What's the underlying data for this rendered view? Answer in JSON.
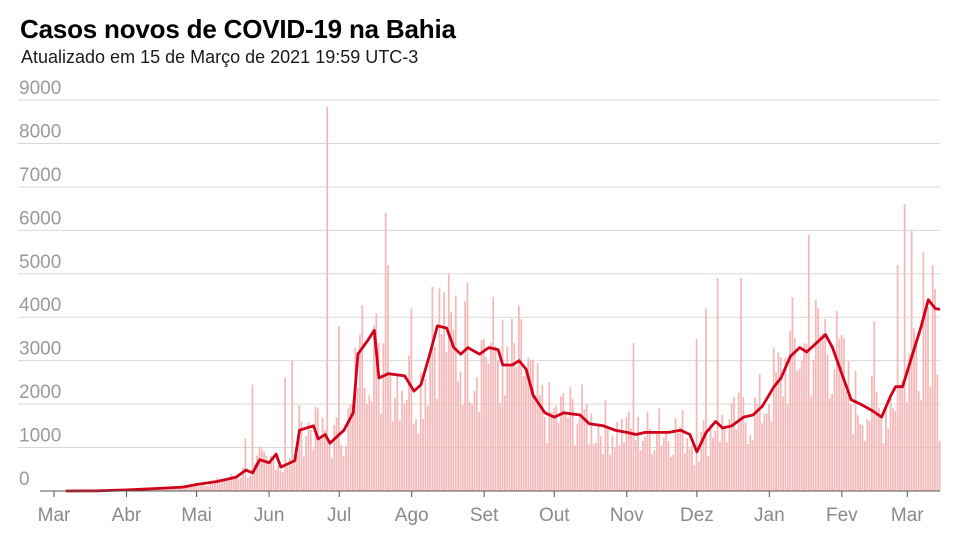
{
  "header": {
    "title": "Casos novos de COVID-19 na Bahia",
    "subtitle": "Atualizado em 15 de Março de 2021 19:59 UTC-3"
  },
  "colors": {
    "bar": "#f4b8b8",
    "line": "#d0021b",
    "grid": "#d9d9d9",
    "axis": "#555555"
  },
  "chart_data": {
    "type": "bar",
    "title": "Casos novos de COVID-19 na Bahia",
    "subtitle": "Atualizado em 15 de Março de 2021 19:59 UTC-3",
    "xlabel": "",
    "ylabel": "",
    "ylim": [
      0,
      9000
    ],
    "y_ticks": [
      0,
      1000,
      2000,
      3000,
      4000,
      5000,
      6000,
      7000,
      8000,
      9000
    ],
    "x_ticks": [
      "Mar",
      "Abr",
      "Mai",
      "Jun",
      "Jul",
      "Ago",
      "Set",
      "Out",
      "Nov",
      "Dez",
      "Jan",
      "Fev",
      "Mar"
    ],
    "x_range": [
      "2020-03-01",
      "2021-03-15"
    ],
    "grid": true,
    "legend": "none",
    "series": [
      {
        "type": "bar",
        "values_note": "daily new cases",
        "points": [
          [
            "2020-03-06",
            1
          ],
          [
            "2020-03-20",
            10
          ],
          [
            "2020-04-01",
            30
          ],
          [
            "2020-04-15",
            60
          ],
          [
            "2020-05-01",
            130
          ],
          [
            "2020-05-15",
            250
          ],
          [
            "2020-05-22",
            1200
          ],
          [
            "2020-05-25",
            2450
          ],
          [
            "2020-06-01",
            700
          ],
          [
            "2020-06-08",
            2600
          ],
          [
            "2020-06-11",
            3000
          ],
          [
            "2020-06-15",
            1600
          ],
          [
            "2020-06-22",
            1900
          ],
          [
            "2020-06-26",
            8850
          ],
          [
            "2020-07-01",
            3800
          ],
          [
            "2020-07-10",
            3600
          ],
          [
            "2020-07-20",
            3400
          ],
          [
            "2020-07-21",
            6400
          ],
          [
            "2020-07-22",
            5200
          ],
          [
            "2020-08-01",
            4200
          ],
          [
            "2020-08-10",
            4700
          ],
          [
            "2020-08-20",
            4500
          ],
          [
            "2020-08-25",
            4800
          ],
          [
            "2020-09-01",
            3500
          ],
          [
            "2020-09-10",
            2200
          ],
          [
            "2020-10-01",
            1900
          ],
          [
            "2020-10-15",
            2000
          ],
          [
            "2020-11-01",
            1700
          ],
          [
            "2020-11-04",
            3400
          ],
          [
            "2020-11-15",
            1900
          ],
          [
            "2020-12-01",
            3500
          ],
          [
            "2020-12-05",
            4200
          ],
          [
            "2020-12-10",
            4900
          ],
          [
            "2020-12-20",
            4900
          ],
          [
            "2021-01-01",
            2000
          ],
          [
            "2021-01-15",
            3000
          ],
          [
            "2021-01-18",
            5900
          ],
          [
            "2021-02-01",
            3600
          ],
          [
            "2021-02-15",
            3900
          ],
          [
            "2021-02-25",
            5200
          ],
          [
            "2021-02-28",
            6600
          ],
          [
            "2021-03-03",
            6000
          ],
          [
            "2021-03-08",
            5500
          ],
          [
            "2021-03-12",
            5200
          ],
          [
            "2021-03-15",
            1150
          ]
        ]
      },
      {
        "type": "line",
        "values_note": "moving average",
        "points": [
          [
            "2020-03-06",
            0
          ],
          [
            "2020-03-20",
            5
          ],
          [
            "2020-04-01",
            25
          ],
          [
            "2020-04-15",
            60
          ],
          [
            "2020-04-25",
            90
          ],
          [
            "2020-05-01",
            150
          ],
          [
            "2020-05-10",
            220
          ],
          [
            "2020-05-18",
            320
          ],
          [
            "2020-05-22",
            480
          ],
          [
            "2020-05-25",
            420
          ],
          [
            "2020-05-28",
            720
          ],
          [
            "2020-06-01",
            650
          ],
          [
            "2020-06-04",
            850
          ],
          [
            "2020-06-06",
            550
          ],
          [
            "2020-06-12",
            700
          ],
          [
            "2020-06-14",
            1400
          ],
          [
            "2020-06-20",
            1500
          ],
          [
            "2020-06-22",
            1200
          ],
          [
            "2020-06-25",
            1300
          ],
          [
            "2020-06-27",
            1100
          ],
          [
            "2020-07-03",
            1400
          ],
          [
            "2020-07-07",
            1800
          ],
          [
            "2020-07-09",
            3150
          ],
          [
            "2020-07-13",
            3450
          ],
          [
            "2020-07-16",
            3700
          ],
          [
            "2020-07-18",
            2600
          ],
          [
            "2020-07-22",
            2700
          ],
          [
            "2020-07-29",
            2650
          ],
          [
            "2020-08-02",
            2300
          ],
          [
            "2020-08-05",
            2450
          ],
          [
            "2020-08-09",
            3200
          ],
          [
            "2020-08-12",
            3800
          ],
          [
            "2020-08-16",
            3750
          ],
          [
            "2020-08-19",
            3300
          ],
          [
            "2020-08-22",
            3150
          ],
          [
            "2020-08-25",
            3300
          ],
          [
            "2020-08-30",
            3150
          ],
          [
            "2020-09-03",
            3300
          ],
          [
            "2020-09-07",
            3250
          ],
          [
            "2020-09-09",
            2900
          ],
          [
            "2020-09-13",
            2900
          ],
          [
            "2020-09-16",
            3000
          ],
          [
            "2020-09-19",
            2800
          ],
          [
            "2020-09-22",
            2200
          ],
          [
            "2020-09-27",
            1800
          ],
          [
            "2020-10-01",
            1700
          ],
          [
            "2020-10-05",
            1800
          ],
          [
            "2020-10-12",
            1750
          ],
          [
            "2020-10-16",
            1550
          ],
          [
            "2020-10-22",
            1500
          ],
          [
            "2020-10-27",
            1400
          ],
          [
            "2020-11-01",
            1350
          ],
          [
            "2020-11-05",
            1300
          ],
          [
            "2020-11-09",
            1350
          ],
          [
            "2020-11-14",
            1350
          ],
          [
            "2020-11-19",
            1350
          ],
          [
            "2020-11-24",
            1400
          ],
          [
            "2020-11-28",
            1300
          ],
          [
            "2020-12-01",
            900
          ],
          [
            "2020-12-05",
            1350
          ],
          [
            "2020-12-09",
            1600
          ],
          [
            "2020-12-12",
            1450
          ],
          [
            "2020-12-16",
            1500
          ],
          [
            "2020-12-21",
            1700
          ],
          [
            "2020-12-25",
            1750
          ],
          [
            "2020-12-29",
            1950
          ],
          [
            "2021-01-03",
            2400
          ],
          [
            "2021-01-06",
            2600
          ],
          [
            "2021-01-10",
            3100
          ],
          [
            "2021-01-14",
            3300
          ],
          [
            "2021-01-17",
            3200
          ],
          [
            "2021-01-21",
            3400
          ],
          [
            "2021-01-25",
            3600
          ],
          [
            "2021-01-28",
            3300
          ],
          [
            "2021-02-01",
            2700
          ],
          [
            "2021-02-05",
            2100
          ],
          [
            "2021-02-09",
            2000
          ],
          [
            "2021-02-14",
            1850
          ],
          [
            "2021-02-18",
            1700
          ],
          [
            "2021-02-22",
            2200
          ],
          [
            "2021-02-24",
            2400
          ],
          [
            "2021-02-27",
            2400
          ],
          [
            "2021-03-03",
            3100
          ],
          [
            "2021-03-07",
            3800
          ],
          [
            "2021-03-10",
            4400
          ],
          [
            "2021-03-13",
            4200
          ],
          [
            "2021-03-15",
            4180
          ]
        ]
      }
    ]
  }
}
